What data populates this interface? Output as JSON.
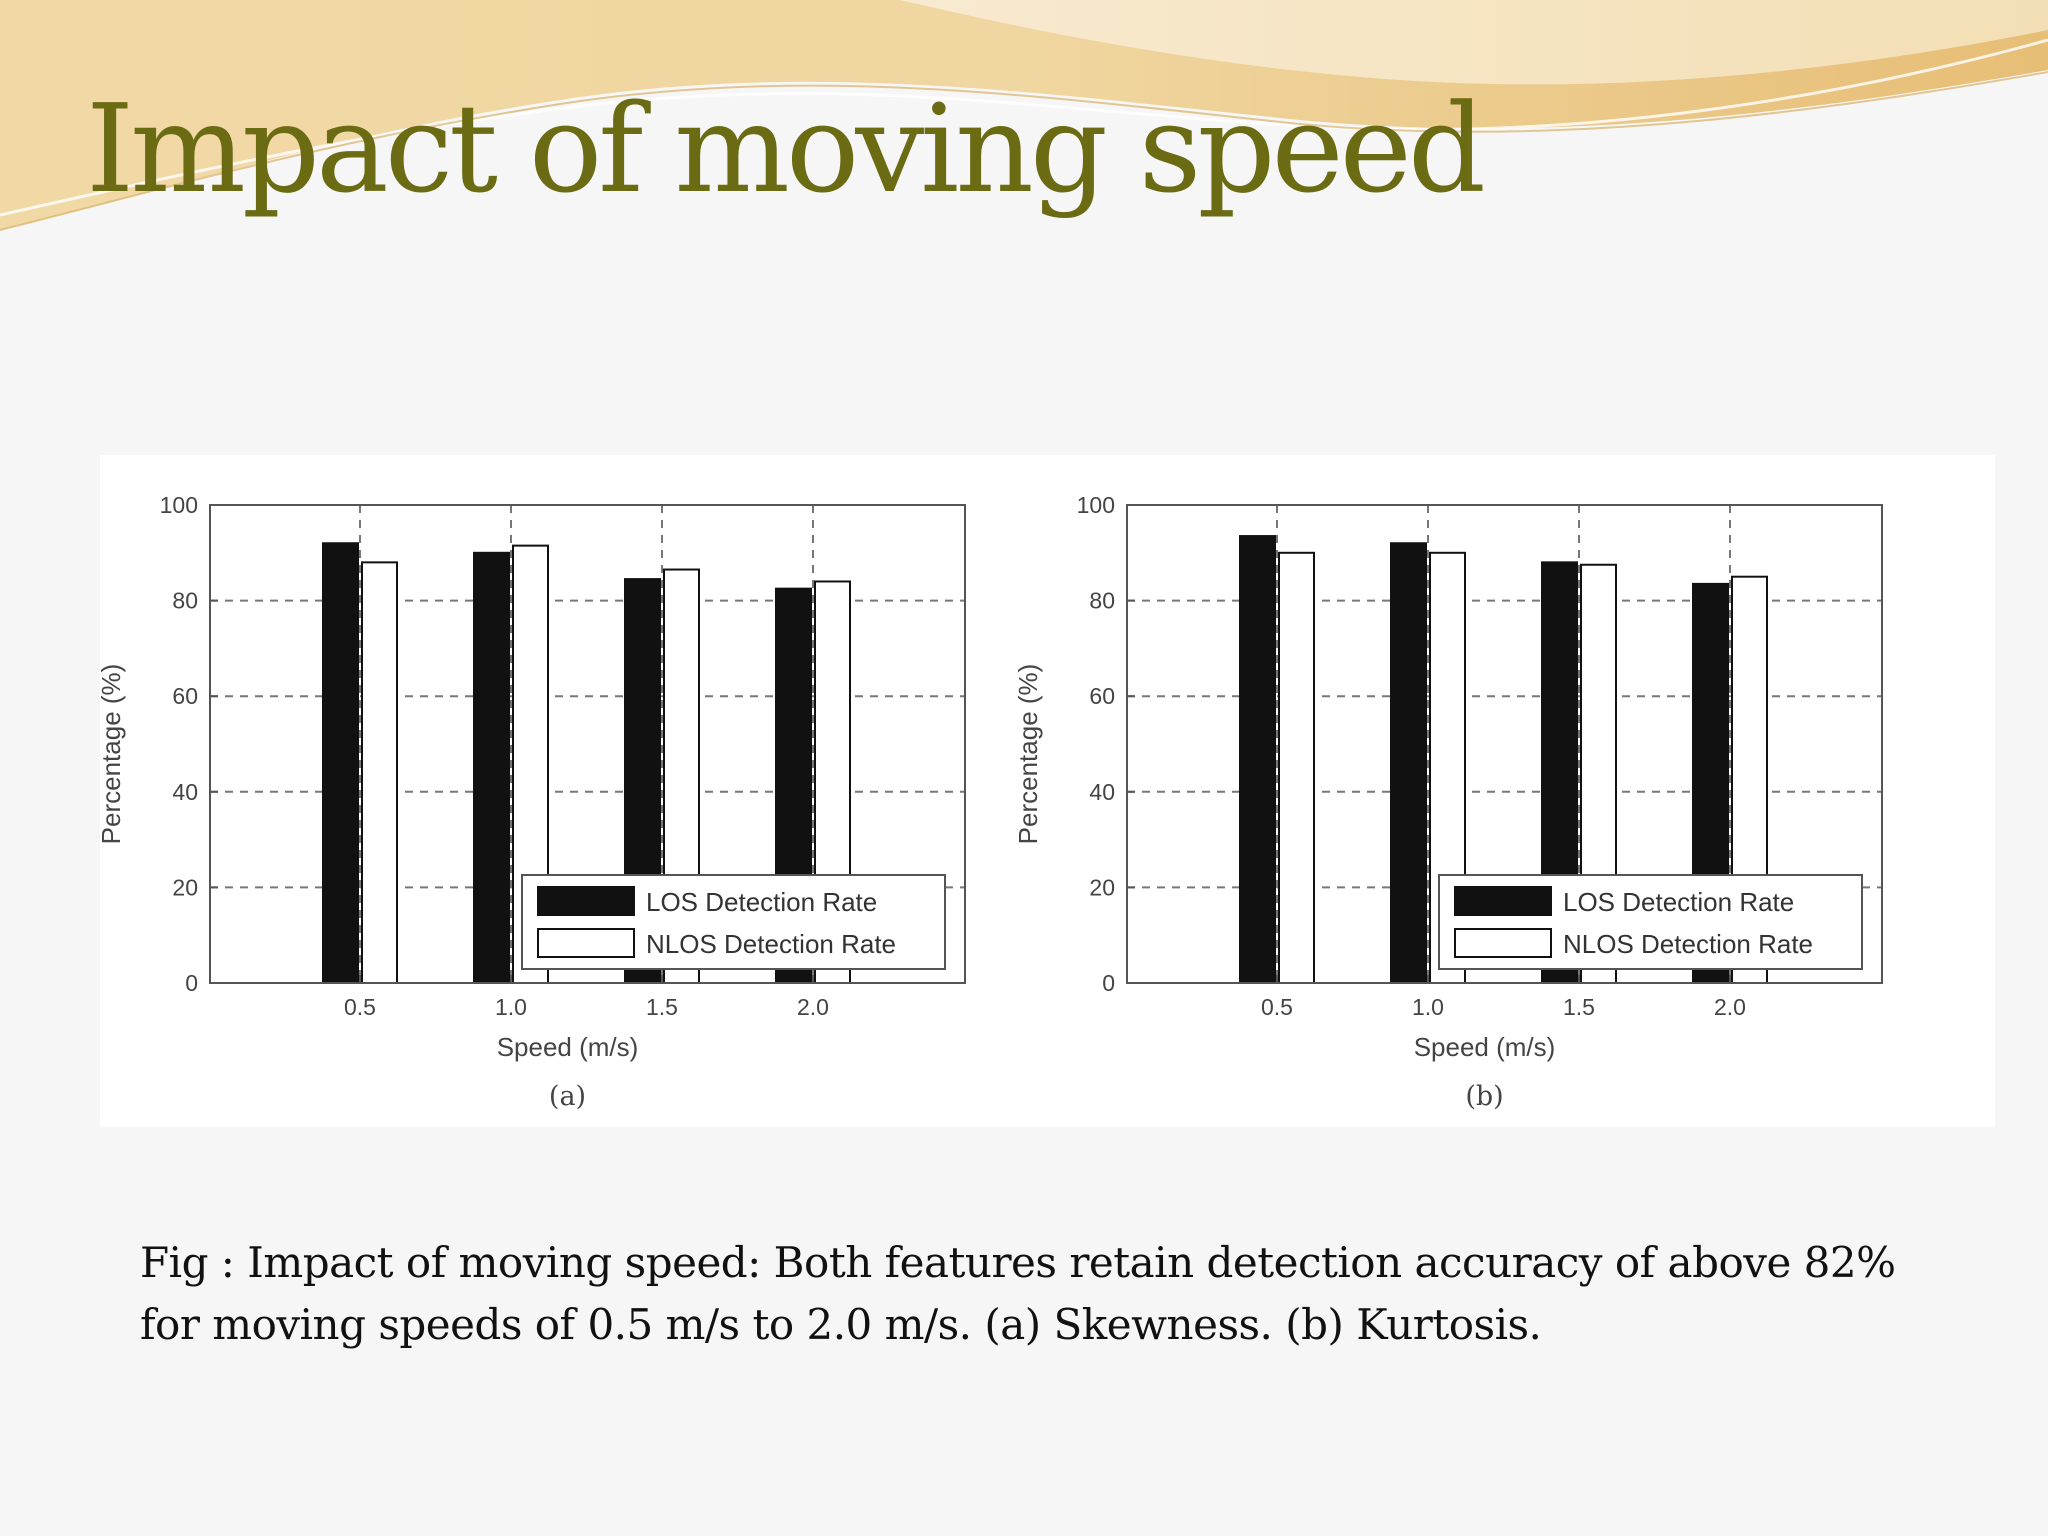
{
  "slide": {
    "title": "Impact of moving speed",
    "caption": "Fig :  Impact of moving speed: Both features retain detection accuracy of above 82% for moving speeds of 0.5 m/s to 2.0 m/s. (a) Skewness. (b) Kurtosis."
  },
  "colors": {
    "title": "#6b6b14",
    "los_bar": "#111111",
    "nlos_bar": "#ffffff",
    "wave_gold": "#e9c98a"
  },
  "chart_data": [
    {
      "type": "bar",
      "panel_label": "(a)",
      "categories": [
        "0.5",
        "1.0",
        "1.5",
        "2.0"
      ],
      "series": [
        {
          "name": "LOS Detection Rate",
          "values": [
            92,
            90,
            84.5,
            82.5
          ]
        },
        {
          "name": "NLOS Detection Rate",
          "values": [
            88,
            91.5,
            86.5,
            84
          ]
        }
      ],
      "xlabel": "Speed (m/s)",
      "ylabel": "Percentage (%)",
      "ylim": [
        0,
        100
      ],
      "yticks": [
        0,
        20,
        40,
        60,
        80,
        100
      ],
      "grid": true,
      "legend_position": "bottom-right"
    },
    {
      "type": "bar",
      "panel_label": "(b)",
      "categories": [
        "0.5",
        "1.0",
        "1.5",
        "2.0"
      ],
      "series": [
        {
          "name": "LOS Detection Rate",
          "values": [
            93.5,
            92,
            88,
            83.5
          ]
        },
        {
          "name": "NLOS Detection Rate",
          "values": [
            90,
            90,
            87.5,
            85
          ]
        }
      ],
      "xlabel": "Speed (m/s)",
      "ylabel": "Percentage (%)",
      "ylim": [
        0,
        100
      ],
      "yticks": [
        0,
        20,
        40,
        60,
        80,
        100
      ],
      "grid": true,
      "legend_position": "bottom-right"
    }
  ]
}
